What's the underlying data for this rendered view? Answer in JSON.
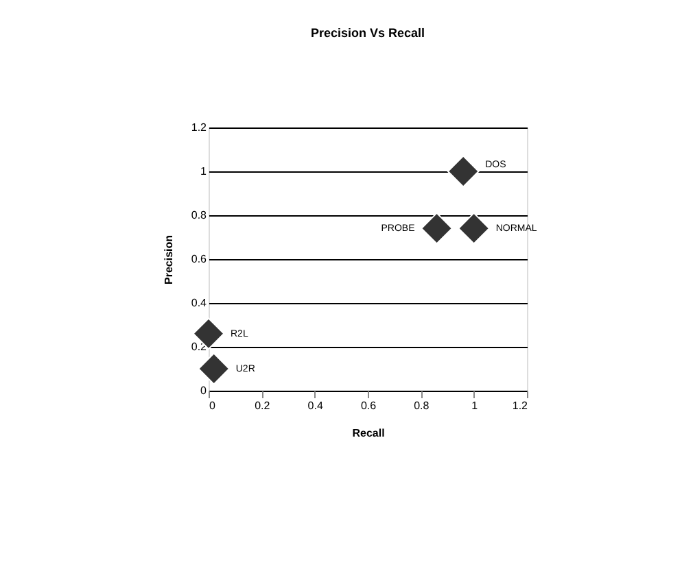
{
  "chart_data": {
    "type": "scatter",
    "title": "Precision Vs Recall",
    "xlabel": "Recall",
    "ylabel": "Precision",
    "x": [
      0.96,
      0.86,
      1.0,
      0.0,
      0.02
    ],
    "series": [
      {
        "color": "#333333",
        "values": [
          1.0,
          0.74,
          0.74,
          0.26,
          0.1
        ]
      }
    ],
    "marker": "diamond",
    "grid": "y",
    "xlim": [
      0,
      1.2
    ],
    "xticks": [
      0,
      0.2,
      0.4,
      0.6,
      0.8,
      1,
      1.2
    ],
    "ylim": [
      0,
      1.2
    ],
    "yticks": [
      0,
      0.2,
      0.4,
      0.6,
      0.8,
      1,
      1.2
    ],
    "annotations": [
      {
        "text": "DOS",
        "x": 0.96,
        "y": 1.0
      },
      {
        "text": "PROBE",
        "x": 0.86,
        "y": 0.74
      },
      {
        "text": "NORMAL",
        "x": 1.0,
        "y": 0.74
      },
      {
        "text": "R2L",
        "x": 0.0,
        "y": 0.26
      },
      {
        "text": "U2R",
        "x": 0.02,
        "y": 0.1
      }
    ]
  }
}
